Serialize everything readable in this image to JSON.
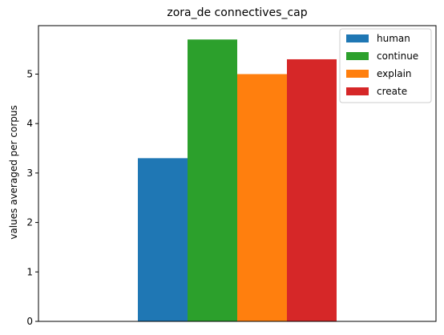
{
  "chart_data": {
    "type": "bar",
    "title": "zora_de connectives_cap",
    "xlabel": "",
    "ylabel": "values averaged per corpus",
    "ylim": [
      0,
      5.98
    ],
    "yticks": [
      0,
      1,
      2,
      3,
      4,
      5
    ],
    "grid": false,
    "legend_position": "top-right",
    "series": [
      {
        "name": "human",
        "value": 3.3,
        "color": "#1f77b4"
      },
      {
        "name": "continue",
        "value": 5.7,
        "color": "#2ca02c"
      },
      {
        "name": "explain",
        "value": 5.0,
        "color": "#ff7f0e"
      },
      {
        "name": "create",
        "value": 5.3,
        "color": "#d62728"
      }
    ]
  }
}
